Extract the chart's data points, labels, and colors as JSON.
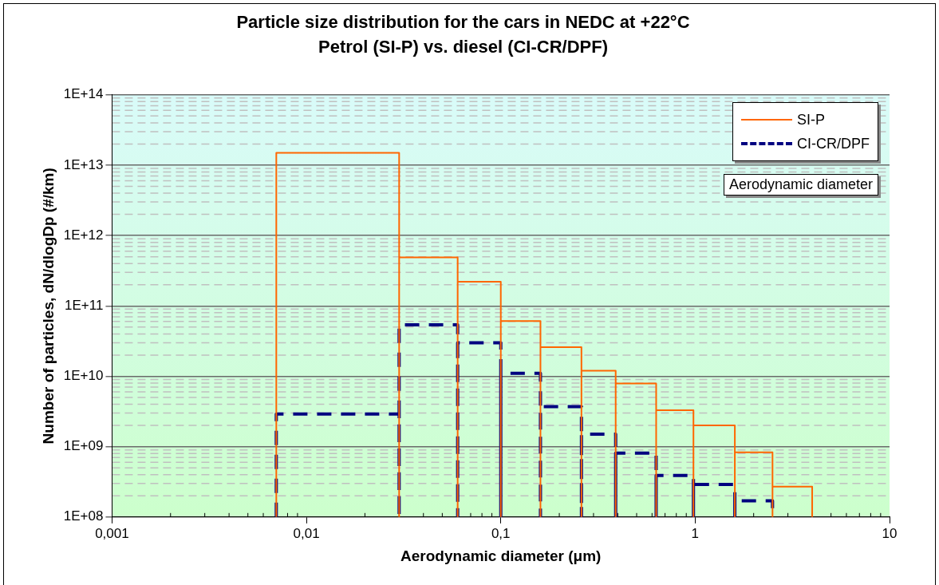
{
  "chart_data": {
    "type": "histogram",
    "title": "Particle size distribution for the cars in NEDC at +22°C",
    "subtitle": "Petrol (SI-P) vs. diesel (CI-CR/DPF)",
    "xlabel": "Aerodynamic diameter (μm)",
    "ylabel": "Number of particles, dN/dlogDp (#/km)",
    "bins": [
      0.007,
      0.03,
      0.06,
      0.1,
      0.16,
      0.26,
      0.39,
      0.63,
      0.98,
      1.6,
      2.5,
      4.0
    ],
    "series": [
      {
        "name": "SI-P",
        "color": "#ff6600",
        "values": [
          15000000000000.0,
          490000000000.0,
          220000000000.0,
          61000000000.0,
          26000000000.0,
          12000000000.0,
          7900000000.0,
          3300000000.0,
          2000000000.0,
          830000000.0,
          270000000.0
        ]
      },
      {
        "name": "CI-CR/DPF",
        "color": "#000080",
        "line_style": "dashed",
        "bins": [
          0.007,
          0.03,
          0.06,
          0.1,
          0.16,
          0.26,
          0.39,
          0.63,
          0.98,
          1.6,
          2.5
        ],
        "values": [
          2900000000.0,
          54000000000.0,
          30000000000.0,
          11000000000.0,
          3700000000.0,
          1500000000.0,
          810000000.0,
          390000000.0,
          290000000.0,
          170000000.0
        ]
      }
    ],
    "log": "xy",
    "xlim": [
      0.001,
      10
    ],
    "xticks": [
      {
        "value": 0.001,
        "label": "0,001"
      },
      {
        "value": 0.01,
        "label": "0,01"
      },
      {
        "value": 0.1,
        "label": "0,1"
      },
      1,
      10
    ],
    "ylim": [
      100000000.0,
      100000000000000.0
    ],
    "yticks": [
      {
        "value": 100000000.0,
        "label": "1E+08"
      },
      {
        "value": 1000000000.0,
        "label": "1E+09"
      },
      {
        "value": 10000000000.0,
        "label": "1E+10"
      },
      {
        "value": 100000000000.0,
        "label": "1E+11"
      },
      {
        "value": 1000000000000.0,
        "label": "1E+12"
      },
      {
        "value": 10000000000000.0,
        "label": "1E+13"
      },
      {
        "value": 100000000000000.0,
        "label": "1E+14"
      }
    ],
    "grid": "y",
    "legend": "top right",
    "annotations": [
      "Aerodynamic diameter"
    ]
  }
}
